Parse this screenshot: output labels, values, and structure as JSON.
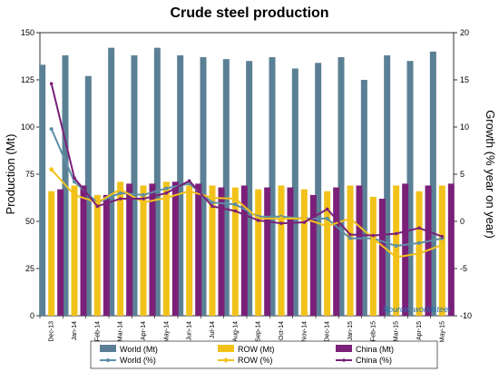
{
  "chart_data": {
    "type": "bar",
    "title": "Crude steel production",
    "ylabel": "Production (Mt)",
    "y2label": "Growth (% year on year)",
    "ylim": [
      0,
      150
    ],
    "y2lim": [
      -10,
      20
    ],
    "yticks": [
      0,
      25,
      50,
      75,
      100,
      125,
      150
    ],
    "y2ticks": [
      -10,
      -5,
      0,
      5,
      10,
      15,
      20
    ],
    "categories": [
      "Dec-13",
      "Jan-14",
      "Feb-14",
      "Mar-14",
      "Apr-14",
      "May-14",
      "Jun-14",
      "Jul-14",
      "Aug-14",
      "Sep-14",
      "Oct-14",
      "Nov-14",
      "Dec-14",
      "Jan-15",
      "Feb-15",
      "Mar-15",
      "Apr-15",
      "May-15"
    ],
    "series": [
      {
        "name": "World (Mt)",
        "kind": "bar",
        "axis": "left",
        "color": "#5b8095",
        "values": [
          133,
          138,
          127,
          142,
          138,
          142,
          138,
          137,
          136,
          135,
          137,
          131,
          134,
          137,
          125,
          138,
          135,
          140
        ]
      },
      {
        "name": "ROW (Mt)",
        "kind": "bar",
        "axis": "left",
        "color": "#f2c21b",
        "values": [
          66,
          69,
          64,
          71,
          69,
          71,
          69,
          69,
          68,
          67,
          69,
          67,
          66,
          69,
          63,
          69,
          66,
          69
        ]
      },
      {
        "name": "China (Mt)",
        "kind": "bar",
        "axis": "left",
        "color": "#7b2079",
        "values": [
          67,
          69,
          64,
          70,
          70,
          71,
          70,
          68,
          69,
          68,
          68,
          64,
          68,
          69,
          62,
          70,
          69,
          70
        ]
      },
      {
        "name": "World (%)",
        "kind": "line",
        "axis": "right",
        "color": "#5c8fa6",
        "values": [
          9.8,
          4.2,
          2.0,
          3.0,
          2.8,
          3.5,
          4.0,
          2.0,
          1.8,
          0.5,
          0.5,
          0.3,
          0.3,
          -1.8,
          -1.8,
          -2.6,
          -2.3,
          -1.8
        ]
      },
      {
        "name": "ROW (%)",
        "kind": "line",
        "axis": "right",
        "color": "#f2c21b",
        "values": [
          5.5,
          2.8,
          2.0,
          3.4,
          2.0,
          2.5,
          3.2,
          2.5,
          2.4,
          0.3,
          0.3,
          0.3,
          -0.5,
          0.3,
          -1.8,
          -3.8,
          -3.4,
          -2.5
        ]
      },
      {
        "name": "China (%)",
        "kind": "line",
        "axis": "right",
        "color": "#7b2079",
        "values": [
          14.6,
          4.6,
          1.6,
          2.4,
          2.4,
          3.0,
          4.3,
          1.6,
          1.1,
          0.1,
          -0.2,
          -0.1,
          1.3,
          -1.4,
          -1.5,
          -1.3,
          -0.7,
          -1.6
        ]
      }
    ],
    "legend_position": "bottom",
    "source": "Source: worldsteel"
  }
}
